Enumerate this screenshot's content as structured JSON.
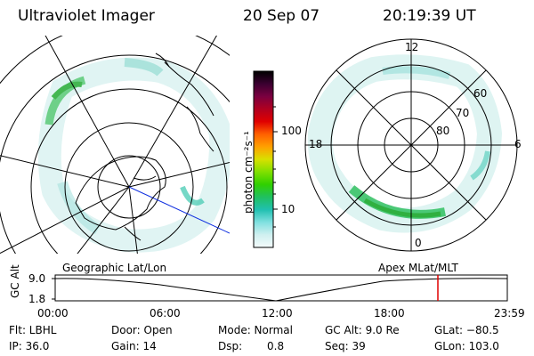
{
  "header": {
    "instrument": "Ultraviolet Imager",
    "date": "20 Sep 07",
    "time": "20:19:39 UT"
  },
  "colorbar": {
    "unit_label": "photon cm⁻²s⁻¹",
    "tick_labels": [
      "100",
      "10"
    ],
    "colors": [
      "#000000",
      "#3a0030",
      "#7a0040",
      "#b00020",
      "#e00000",
      "#ff6000",
      "#ffa000",
      "#d8e000",
      "#80e000",
      "#30d000",
      "#20c060",
      "#20c0b0",
      "#80e0e0",
      "#d0f0f0",
      "#f4fbfb"
    ]
  },
  "geo_panel": {
    "label": "Geographic Lat/Lon"
  },
  "mag_panel": {
    "label": "Apex MLat/MLT",
    "mlt_labels": {
      "top": "12",
      "left": "18",
      "right": "6",
      "bottom": "0"
    },
    "lat_labels": [
      "60",
      "70",
      "80"
    ]
  },
  "timeline": {
    "ylabel": "GC Alt",
    "y_ticks": [
      "9.0",
      "1.8"
    ],
    "x_ticks": [
      "00:00",
      "06:00",
      "12:00",
      "18:00",
      "23:59"
    ],
    "current_time_color": "#e00000"
  },
  "status": {
    "flt": "Flt: LBHL",
    "ip": "IP: 36.0",
    "door": "Door: Open",
    "gain": "Gain: 14",
    "mode": "Mode: Normal",
    "dsp": "Dsp:",
    "dsp_val": "0.8",
    "gcalt": "GC Alt: 9.0 Re",
    "seq": "Seq: 39",
    "glat": "GLat: −80.5",
    "glon": "GLon: 103.0"
  }
}
